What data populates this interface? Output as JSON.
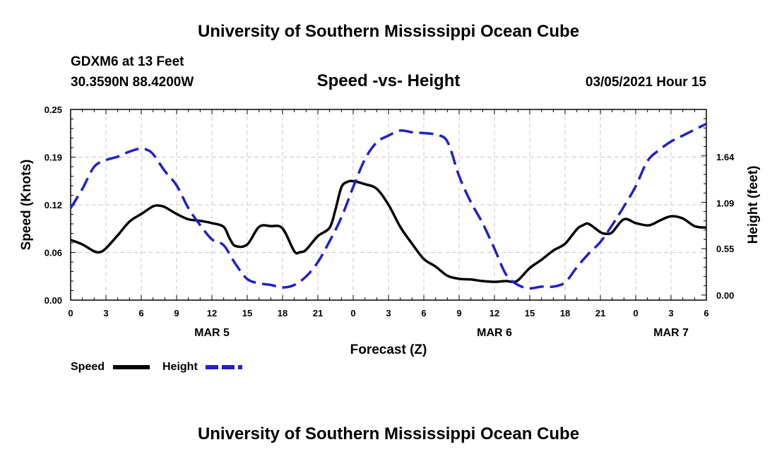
{
  "header": {
    "title": "University of Southern Mississippi Ocean Cube",
    "station": "GDXM6 at 13 Feet",
    "location": "30.3590N 88.4200W",
    "date": "03/05/2021 Hour 15"
  },
  "footer": {
    "title": "University of Southern Mississippi Ocean Cube"
  },
  "chart_data": {
    "type": "line",
    "title": "Speed -vs- Height",
    "xlabel": "Forecast (Z)",
    "ylabel_left": "Speed (Knots)",
    "ylabel_right": "Height (feet)",
    "x_range_hours": [
      0,
      54
    ],
    "x_ticks": [
      {
        "x": 0,
        "label": "0"
      },
      {
        "x": 3,
        "label": "3"
      },
      {
        "x": 6,
        "label": "6"
      },
      {
        "x": 9,
        "label": "9"
      },
      {
        "x": 12,
        "label": "12"
      },
      {
        "x": 15,
        "label": "15"
      },
      {
        "x": 18,
        "label": "18"
      },
      {
        "x": 21,
        "label": "21"
      },
      {
        "x": 24,
        "label": "0"
      },
      {
        "x": 27,
        "label": "3"
      },
      {
        "x": 30,
        "label": "6"
      },
      {
        "x": 33,
        "label": "9"
      },
      {
        "x": 36,
        "label": "12"
      },
      {
        "x": 39,
        "label": "15"
      },
      {
        "x": 42,
        "label": "18"
      },
      {
        "x": 45,
        "label": "21"
      },
      {
        "x": 48,
        "label": "0"
      },
      {
        "x": 51,
        "label": "3"
      },
      {
        "x": 54,
        "label": "6"
      }
    ],
    "date_labels": [
      {
        "x": 12,
        "label": "MAR 5"
      },
      {
        "x": 36,
        "label": "MAR 6"
      },
      {
        "x": 51,
        "label": "MAR 7"
      }
    ],
    "y_left_range": [
      0,
      0.25
    ],
    "y_left_ticks": [
      {
        "v": 0,
        "label": "0.00"
      },
      {
        "v": 0.0625,
        "label": "0.06"
      },
      {
        "v": 0.125,
        "label": "0.12"
      },
      {
        "v": 0.1875,
        "label": "0.19"
      },
      {
        "v": 0.25,
        "label": "0.25"
      }
    ],
    "y_right_range": [
      -0.06,
      2.2
    ],
    "y_right_ticks": [
      {
        "v": 0.0,
        "label": "0.00"
      },
      {
        "v": 0.55,
        "label": "0.55"
      },
      {
        "v": 1.09,
        "label": "1.09"
      },
      {
        "v": 1.64,
        "label": "1.64"
      }
    ],
    "legend": [
      {
        "name": "Speed",
        "color": "#000000",
        "dash": "solid"
      },
      {
        "name": "Height",
        "color": "#1f1fd0",
        "dash": "dashed"
      }
    ],
    "series": [
      {
        "name": "Speed",
        "axis": "left",
        "color": "#000000",
        "x": [
          0,
          1,
          2,
          2.5,
          3,
          4,
          5,
          6,
          7,
          7.5,
          8,
          9,
          10,
          11,
          12,
          13,
          13.5,
          14,
          15,
          16,
          17,
          18,
          19,
          19.5,
          20,
          21,
          22,
          22.5,
          23,
          23.5,
          24,
          25,
          26,
          27,
          28,
          29,
          30,
          31,
          32,
          33,
          34,
          35,
          36,
          37,
          37.5,
          38,
          39,
          40,
          41,
          42,
          43,
          43.5,
          44,
          45,
          45.5,
          46,
          47,
          48,
          49,
          49.5,
          50,
          51,
          52,
          53,
          54
        ],
        "values": [
          0.079,
          0.073,
          0.064,
          0.063,
          0.068,
          0.085,
          0.103,
          0.113,
          0.123,
          0.124,
          0.122,
          0.113,
          0.106,
          0.104,
          0.101,
          0.096,
          0.081,
          0.071,
          0.073,
          0.096,
          0.097,
          0.094,
          0.064,
          0.063,
          0.066,
          0.084,
          0.095,
          0.119,
          0.148,
          0.155,
          0.156,
          0.152,
          0.146,
          0.125,
          0.096,
          0.074,
          0.054,
          0.044,
          0.032,
          0.028,
          0.027,
          0.025,
          0.024,
          0.025,
          0.024,
          0.026,
          0.042,
          0.053,
          0.065,
          0.074,
          0.093,
          0.098,
          0.1,
          0.089,
          0.087,
          0.089,
          0.106,
          0.101,
          0.098,
          0.1,
          0.104,
          0.11,
          0.107,
          0.097,
          0.095
        ]
      },
      {
        "name": "Height",
        "axis": "right",
        "color": "#1f1fd0",
        "x": [
          0,
          1,
          2,
          3,
          4,
          5,
          6,
          6.5,
          7,
          8,
          9,
          10,
          11,
          12,
          13,
          14,
          15,
          16,
          17,
          18,
          19,
          20,
          21,
          22,
          23,
          24,
          25,
          26,
          27,
          28,
          29,
          30,
          31,
          32,
          33,
          34,
          35,
          36,
          37,
          38,
          39,
          40,
          41,
          42,
          43,
          44,
          45,
          46,
          47,
          48,
          49,
          50,
          51,
          52,
          53,
          54
        ],
        "values": [
          1.03,
          1.26,
          1.52,
          1.6,
          1.64,
          1.7,
          1.74,
          1.72,
          1.67,
          1.47,
          1.3,
          1.03,
          0.83,
          0.66,
          0.59,
          0.37,
          0.19,
          0.14,
          0.12,
          0.09,
          0.12,
          0.22,
          0.39,
          0.64,
          0.92,
          1.28,
          1.61,
          1.81,
          1.89,
          1.95,
          1.93,
          1.92,
          1.9,
          1.82,
          1.41,
          1.1,
          0.85,
          0.55,
          0.24,
          0.12,
          0.08,
          0.1,
          0.1,
          0.15,
          0.33,
          0.49,
          0.63,
          0.83,
          1.05,
          1.29,
          1.59,
          1.72,
          1.82,
          1.89,
          1.96,
          2.03
        ]
      }
    ]
  }
}
